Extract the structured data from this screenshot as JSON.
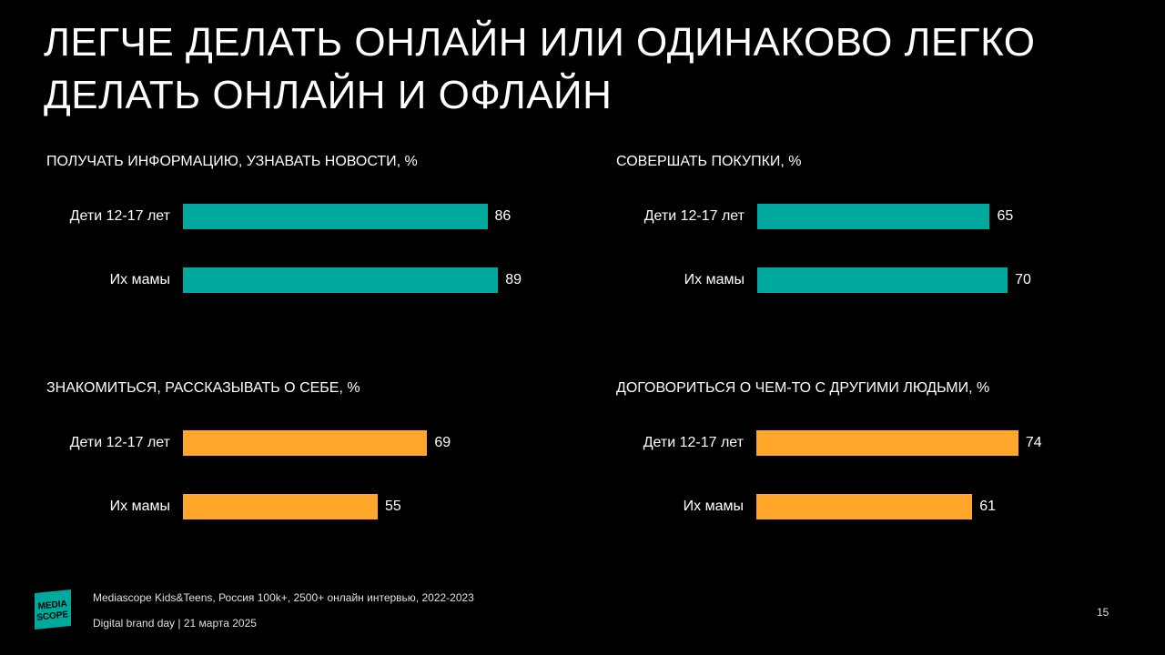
{
  "title": "ЛЕГЧЕ ДЕЛАТЬ ОНЛАЙН ИЛИ ОДИНАКОВО ЛЕГКО ДЕЛАТЬ ОНЛАЙН И ОФЛАЙН",
  "chart_data": [
    {
      "type": "bar",
      "title": "ПОЛУЧАТЬ ИНФОРМАЦИЮ, УЗНАВАТЬ НОВОСТИ, %",
      "categories": [
        "Дети 12-17 лет",
        "Их мамы"
      ],
      "values": [
        86,
        89
      ],
      "color": "#00a99d",
      "xlim": [
        0,
        100
      ]
    },
    {
      "type": "bar",
      "title": "СОВЕРШАТЬ ПОКУПКИ, %",
      "categories": [
        "Дети 12-17 лет",
        "Их мамы"
      ],
      "values": [
        65,
        70
      ],
      "color": "#00a99d",
      "xlim": [
        0,
        100
      ]
    },
    {
      "type": "bar",
      "title": "ЗНАКОМИТЬСЯ, РАССКАЗЫВАТЬ О СЕБЕ, %",
      "categories": [
        "Дети 12-17 лет",
        "Их мамы"
      ],
      "values": [
        69,
        55
      ],
      "color": "#ffa62b",
      "xlim": [
        0,
        100
      ]
    },
    {
      "type": "bar",
      "title": "ДОГОВОРИТЬСЯ О ЧЕМ-ТО С ДРУГИМИ ЛЮДЬМИ, %",
      "categories": [
        "Дети 12-17 лет",
        "Их мамы"
      ],
      "values": [
        74,
        61
      ],
      "color": "#ffa62b",
      "xlim": [
        0,
        100
      ]
    }
  ],
  "footer": {
    "source": "Mediascope Kids&Teens, Россия 100k+, 2500+ онлайн интервью, 2022-2023",
    "event": "Digital brand day |  21 марта 2025",
    "page": "15"
  },
  "logo": {
    "line1": "MEDIA",
    "line2": "SCOPE",
    "color": "#00a99d"
  }
}
